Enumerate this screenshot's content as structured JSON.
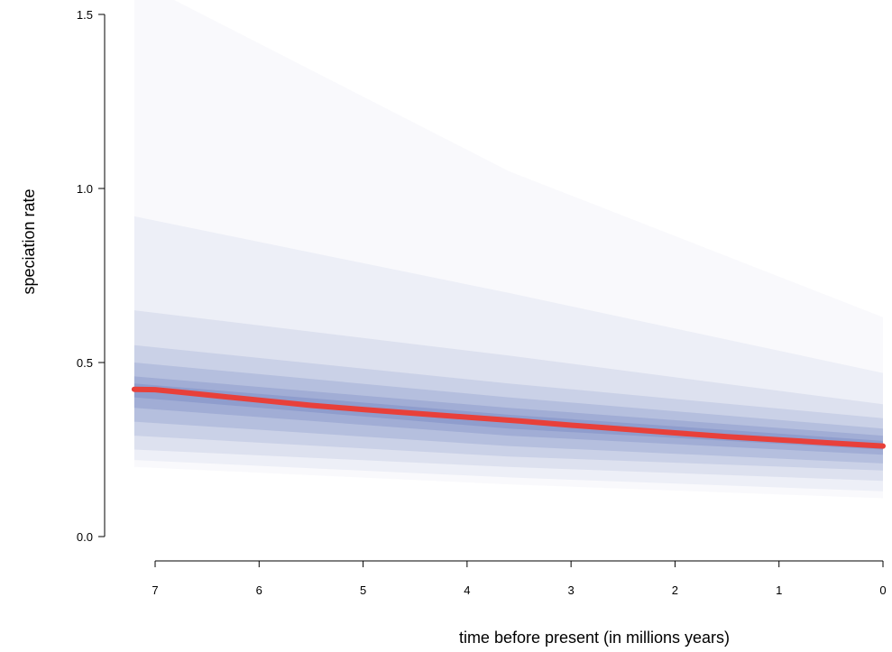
{
  "chart_data": {
    "type": "line",
    "title": "",
    "xlabel": "time before present (in millions years)",
    "ylabel": "speciation rate",
    "x_reversed": true,
    "xlim": [
      7.2,
      0
    ],
    "ylim": [
      0,
      1.5
    ],
    "xticks": [
      7,
      6,
      5,
      4,
      3,
      2,
      1,
      0
    ],
    "xtick_labels": [
      "7",
      "6",
      "5",
      "4",
      "3",
      "2",
      "1",
      "0"
    ],
    "yticks": [
      0,
      0.5,
      1,
      1.5
    ],
    "ytick_labels": [
      "0.0",
      "0.5",
      "1.0",
      "1.5"
    ],
    "grid": false,
    "colors": {
      "mean_line": "#e8403a",
      "credible_band": "#5b6fb5"
    },
    "series": [
      {
        "role": "mean",
        "x": [
          7.2,
          7.0,
          6.8,
          6.5,
          6.0,
          5.5,
          5.0,
          4.5,
          4.0,
          3.5,
          3.0,
          2.5,
          2.0,
          1.5,
          1.0,
          0.5,
          0.0
        ],
        "y": [
          0.423,
          0.422,
          0.416,
          0.407,
          0.392,
          0.377,
          0.365,
          0.354,
          0.343,
          0.332,
          0.32,
          0.309,
          0.298,
          0.287,
          0.278,
          0.269,
          0.26
        ]
      }
    ],
    "bands": [
      {
        "x": [
          7.2,
          3.6,
          0.0
        ],
        "lower": [
          0.2,
          0.15,
          0.11
        ],
        "upper": [
          1.6,
          1.05,
          0.63
        ]
      },
      {
        "x": [
          7.2,
          3.6,
          0.0
        ],
        "lower": [
          0.22,
          0.17,
          0.13
        ],
        "upper": [
          0.92,
          0.7,
          0.47
        ]
      },
      {
        "x": [
          7.2,
          3.6,
          0.0
        ],
        "lower": [
          0.25,
          0.2,
          0.16
        ],
        "upper": [
          0.65,
          0.52,
          0.38
        ]
      },
      {
        "x": [
          7.2,
          3.6,
          0.0
        ],
        "lower": [
          0.29,
          0.23,
          0.19
        ],
        "upper": [
          0.55,
          0.44,
          0.34
        ]
      },
      {
        "x": [
          7.2,
          3.6,
          0.0
        ],
        "lower": [
          0.33,
          0.26,
          0.21
        ],
        "upper": [
          0.5,
          0.4,
          0.31
        ]
      },
      {
        "x": [
          7.2,
          3.6,
          0.0
        ],
        "lower": [
          0.37,
          0.29,
          0.235
        ],
        "upper": [
          0.46,
          0.37,
          0.29
        ]
      },
      {
        "x": [
          7.2,
          3.6,
          0.0
        ],
        "lower": [
          0.4,
          0.31,
          0.25
        ],
        "upper": [
          0.44,
          0.35,
          0.275
        ]
      }
    ]
  }
}
